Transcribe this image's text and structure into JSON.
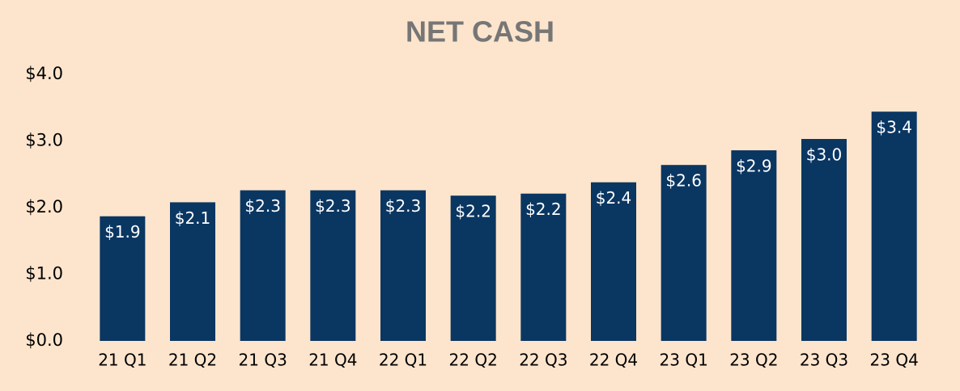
{
  "chart_data": {
    "type": "bar",
    "title": "NET CASH",
    "categories": [
      "21 Q1",
      "21 Q2",
      "21 Q3",
      "21 Q4",
      "22 Q1",
      "22 Q2",
      "22 Q3",
      "22 Q4",
      "23 Q1",
      "23 Q2",
      "23 Q3",
      "23 Q4"
    ],
    "values": [
      1.87,
      2.08,
      2.26,
      2.26,
      2.26,
      2.18,
      2.21,
      2.38,
      2.64,
      2.86,
      3.03,
      3.44
    ],
    "value_labels": [
      "$1.9",
      "$2.1",
      "$2.3",
      "$2.3",
      "$2.3",
      "$2.2",
      "$2.2",
      "$2.4",
      "$2.6",
      "$2.9",
      "$3.0",
      "$3.4"
    ],
    "color": "#0a3662",
    "ylim": [
      0,
      4
    ],
    "yticks": [
      {
        "value": 0,
        "label": "$0.0"
      },
      {
        "value": 1,
        "label": "$1.0"
      },
      {
        "value": 2,
        "label": "$2.0"
      },
      {
        "value": 3,
        "label": "$3.0"
      },
      {
        "value": 4,
        "label": "$4.0"
      }
    ],
    "grid": false
  }
}
